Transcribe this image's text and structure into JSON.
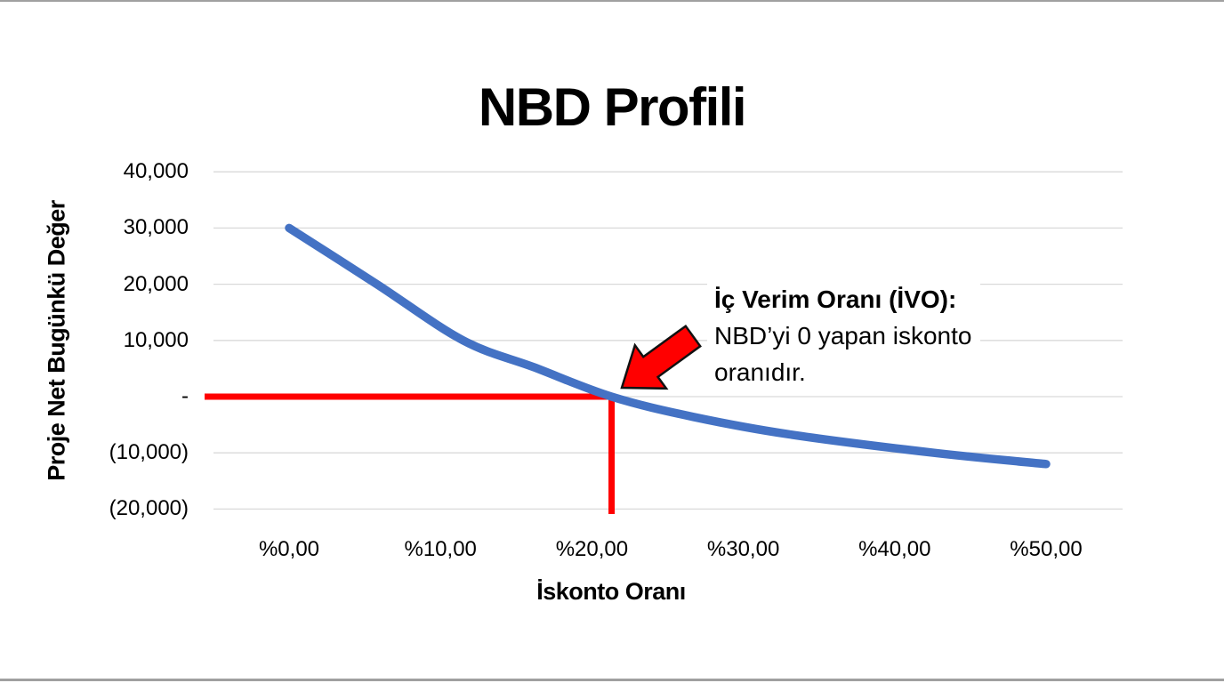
{
  "chart_data": {
    "type": "line",
    "title": "NBD Profili",
    "xlabel": "İskonto Oranı",
    "ylabel": "Proje Net Bugünkü Değer",
    "xlim": [
      0,
      50
    ],
    "ylim": [
      -20000,
      40000
    ],
    "grid": true,
    "gridline_color": "#D9D9D9",
    "background_color": "#FFFFFF",
    "text_color": "#000000",
    "legend": "none",
    "x_ticks": [
      {
        "label": "%0,00",
        "value": 0
      },
      {
        "label": "%10,00",
        "value": 10
      },
      {
        "label": "%20,00",
        "value": 20
      },
      {
        "label": "%30,00",
        "value": 30
      },
      {
        "label": "%40,00",
        "value": 40
      },
      {
        "label": "%50,00",
        "value": 50
      }
    ],
    "y_ticks": [
      {
        "label": "40,000",
        "value": 40000
      },
      {
        "label": "30,000",
        "value": 30000
      },
      {
        "label": "20,000",
        "value": 20000
      },
      {
        "label": "10,000",
        "value": 10000
      },
      {
        "label": "-",
        "value": 0
      },
      {
        "label": "(10,000)",
        "value": -10000
      },
      {
        "label": "(20,000)",
        "value": -20000
      }
    ],
    "series": [
      {
        "name": "NBD",
        "color": "#4472C4",
        "points": [
          [
            0,
            30000
          ],
          [
            5.8,
            20000
          ],
          [
            11.5,
            10000
          ],
          [
            16.2,
            5200
          ],
          [
            21.3,
            0
          ],
          [
            26.7,
            -3600
          ],
          [
            33,
            -6700
          ],
          [
            42.6,
            -10000
          ],
          [
            50,
            -12000
          ]
        ]
      }
    ],
    "irr_percent": 21.3,
    "irr_npv": 0,
    "irr_marker_color": "#FF0000",
    "annotation": {
      "lines": [
        "İç Verim Oranı (İVO):",
        "NBD’yi 0 yapan iskonto",
        "oranıdır."
      ],
      "arrow_icon": "block-arrow-down-left",
      "arrow_color": "#FF0000",
      "arrow_outline_color": "#111111"
    }
  }
}
